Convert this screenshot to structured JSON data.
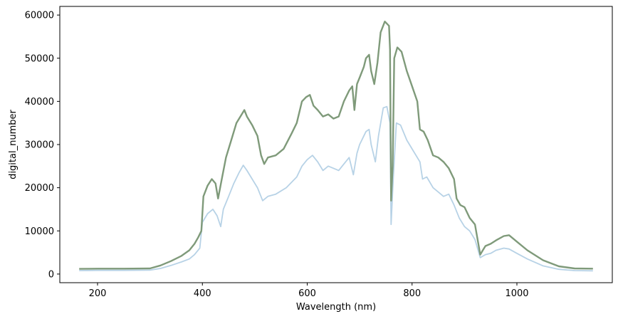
{
  "chart_data": {
    "type": "line",
    "title": "",
    "xlabel": "Wavelength (nm)",
    "ylabel": "digital_number",
    "xlim": [
      128,
      1182
    ],
    "ylim": [
      -2000,
      62000
    ],
    "xticks": [
      200,
      400,
      600,
      800,
      1000
    ],
    "yticks": [
      0,
      10000,
      20000,
      30000,
      40000,
      50000,
      60000
    ],
    "grid": false,
    "legend": "none",
    "colors": {
      "series_dark": "#7f9a7a",
      "series_light": "#b7d2e6",
      "frame": "#000000"
    },
    "series": [
      {
        "color": "#b7d2e6",
        "points": [
          [
            165,
            800
          ],
          [
            200,
            850
          ],
          [
            250,
            850
          ],
          [
            300,
            900
          ],
          [
            320,
            1300
          ],
          [
            340,
            2000
          ],
          [
            360,
            2800
          ],
          [
            375,
            3500
          ],
          [
            385,
            4500
          ],
          [
            395,
            6000
          ],
          [
            400,
            12000
          ],
          [
            410,
            14000
          ],
          [
            420,
            15000
          ],
          [
            428,
            13500
          ],
          [
            435,
            11000
          ],
          [
            440,
            15000
          ],
          [
            450,
            18000
          ],
          [
            460,
            21000
          ],
          [
            470,
            23500
          ],
          [
            478,
            25200
          ],
          [
            485,
            24000
          ],
          [
            495,
            22000
          ],
          [
            505,
            20000
          ],
          [
            515,
            17000
          ],
          [
            525,
            18000
          ],
          [
            540,
            18500
          ],
          [
            560,
            20000
          ],
          [
            580,
            22500
          ],
          [
            590,
            25000
          ],
          [
            600,
            26500
          ],
          [
            610,
            27500
          ],
          [
            620,
            26000
          ],
          [
            630,
            24000
          ],
          [
            640,
            25000
          ],
          [
            650,
            24500
          ],
          [
            660,
            24000
          ],
          [
            670,
            25500
          ],
          [
            680,
            27000
          ],
          [
            688,
            23000
          ],
          [
            695,
            28000
          ],
          [
            700,
            30000
          ],
          [
            712,
            33000
          ],
          [
            718,
            33500
          ],
          [
            722,
            30000
          ],
          [
            730,
            26000
          ],
          [
            736,
            32000
          ],
          [
            745,
            38500
          ],
          [
            752,
            38800
          ],
          [
            758,
            35000
          ],
          [
            760,
            11500
          ],
          [
            764,
            22000
          ],
          [
            770,
            35000
          ],
          [
            778,
            34500
          ],
          [
            790,
            31000
          ],
          [
            800,
            29000
          ],
          [
            815,
            26000
          ],
          [
            820,
            22000
          ],
          [
            828,
            22500
          ],
          [
            840,
            20000
          ],
          [
            850,
            19000
          ],
          [
            860,
            18000
          ],
          [
            870,
            18500
          ],
          [
            880,
            16000
          ],
          [
            890,
            13000
          ],
          [
            900,
            11000
          ],
          [
            910,
            10000
          ],
          [
            920,
            8000
          ],
          [
            930,
            3800
          ],
          [
            940,
            4500
          ],
          [
            950,
            4800
          ],
          [
            960,
            5500
          ],
          [
            975,
            6000
          ],
          [
            985,
            5800
          ],
          [
            1000,
            4800
          ],
          [
            1020,
            3500
          ],
          [
            1050,
            1900
          ],
          [
            1080,
            1100
          ],
          [
            1110,
            800
          ],
          [
            1145,
            750
          ]
        ]
      },
      {
        "color": "#7f9a7a",
        "points": [
          [
            165,
            1200
          ],
          [
            200,
            1250
          ],
          [
            250,
            1250
          ],
          [
            300,
            1300
          ],
          [
            320,
            2000
          ],
          [
            340,
            3000
          ],
          [
            360,
            4200
          ],
          [
            375,
            5500
          ],
          [
            385,
            7000
          ],
          [
            392,
            8500
          ],
          [
            398,
            10000
          ],
          [
            402,
            18000
          ],
          [
            410,
            20500
          ],
          [
            418,
            22000
          ],
          [
            425,
            21000
          ],
          [
            430,
            17500
          ],
          [
            437,
            22000
          ],
          [
            445,
            27000
          ],
          [
            455,
            31000
          ],
          [
            465,
            35000
          ],
          [
            475,
            37000
          ],
          [
            480,
            38000
          ],
          [
            485,
            36500
          ],
          [
            495,
            34500
          ],
          [
            505,
            32000
          ],
          [
            512,
            27500
          ],
          [
            518,
            25500
          ],
          [
            525,
            27000
          ],
          [
            540,
            27500
          ],
          [
            555,
            29000
          ],
          [
            570,
            32500
          ],
          [
            580,
            35000
          ],
          [
            590,
            40000
          ],
          [
            598,
            41000
          ],
          [
            605,
            41500
          ],
          [
            612,
            39000
          ],
          [
            620,
            38000
          ],
          [
            630,
            36500
          ],
          [
            640,
            37000
          ],
          [
            650,
            36000
          ],
          [
            660,
            36500
          ],
          [
            670,
            40000
          ],
          [
            680,
            42500
          ],
          [
            686,
            43500
          ],
          [
            690,
            38000
          ],
          [
            695,
            44000
          ],
          [
            700,
            45500
          ],
          [
            708,
            48000
          ],
          [
            712,
            50000
          ],
          [
            718,
            50800
          ],
          [
            722,
            47000
          ],
          [
            728,
            44000
          ],
          [
            734,
            49000
          ],
          [
            740,
            56000
          ],
          [
            748,
            58500
          ],
          [
            756,
            57500
          ],
          [
            758,
            52000
          ],
          [
            760,
            17000
          ],
          [
            763,
            25000
          ],
          [
            766,
            50000
          ],
          [
            772,
            52500
          ],
          [
            780,
            51500
          ],
          [
            790,
            47000
          ],
          [
            800,
            43500
          ],
          [
            810,
            40000
          ],
          [
            815,
            33500
          ],
          [
            822,
            33000
          ],
          [
            830,
            31000
          ],
          [
            840,
            27500
          ],
          [
            850,
            27000
          ],
          [
            860,
            26000
          ],
          [
            870,
            24500
          ],
          [
            880,
            22000
          ],
          [
            885,
            17500
          ],
          [
            892,
            16000
          ],
          [
            900,
            15500
          ],
          [
            910,
            13000
          ],
          [
            920,
            11500
          ],
          [
            930,
            4500
          ],
          [
            935,
            5500
          ],
          [
            940,
            6500
          ],
          [
            950,
            7000
          ],
          [
            960,
            7800
          ],
          [
            975,
            8800
          ],
          [
            985,
            9000
          ],
          [
            1000,
            7500
          ],
          [
            1020,
            5500
          ],
          [
            1050,
            3200
          ],
          [
            1080,
            1800
          ],
          [
            1110,
            1300
          ],
          [
            1145,
            1250
          ]
        ]
      }
    ]
  }
}
